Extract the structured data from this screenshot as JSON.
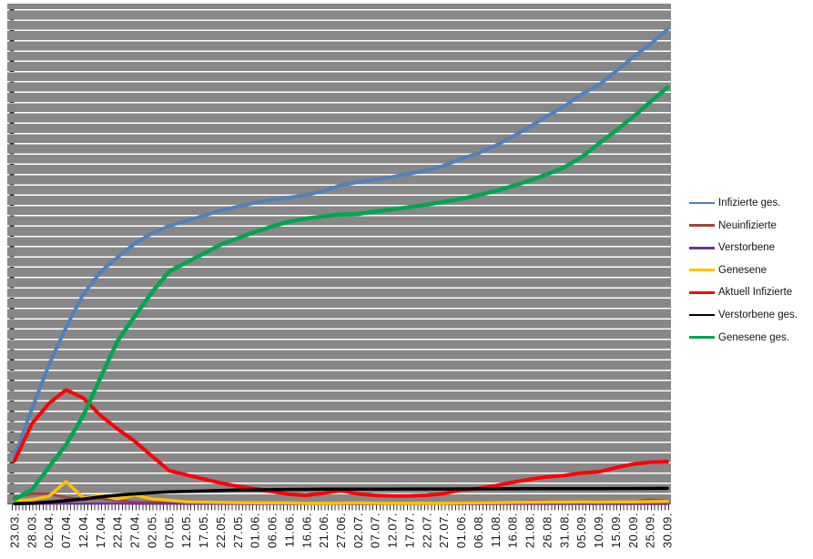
{
  "chart_data": {
    "type": "line",
    "title": "",
    "xlabel": "",
    "ylabel": "",
    "x_label_rotation": 90,
    "x_labels": [
      "23.03.",
      "28.03.",
      "02.04.",
      "07.04.",
      "12.04.",
      "17.04.",
      "22.04.",
      "27.04.",
      "02.05.",
      "07.05.",
      "12.05.",
      "17.05.",
      "22.05.",
      "27.05.",
      "01.06.",
      "06.06.",
      "11.06.",
      "16.06.",
      "21.06.",
      "27.06.",
      "02.07.",
      "07.07.",
      "12.07.",
      "17.07.",
      "22.07.",
      "27.07.",
      "01.06.",
      "06.08.",
      "11.08.",
      "16.08.",
      "21.08.",
      "26.08.",
      "31.08.",
      "05.09.",
      "10.09.",
      "15.09.",
      "20.09.",
      "25.09.",
      "30.09."
    ],
    "x_minor_ticks_per_label": 5,
    "ylim": [
      0,
      305000
    ],
    "y_axis_labels_visible": false,
    "y_gridlines": 48,
    "grid": "horizontal",
    "legend_position": "right",
    "series": [
      {
        "name": "Infizierte ges.",
        "color": "#4F81BD",
        "width": 4,
        "values": [
          29212,
          57695,
          84794,
          107663,
          127854,
          141397,
          150383,
          158758,
          164967,
          169430,
          172576,
          175752,
          179021,
          181288,
          183594,
          185416,
          186866,
          188252,
          190862,
          194259,
          196096,
          197783,
          199375,
          201450,
          203368,
          206242,
          210402,
          213772,
          218519,
          224014,
          230048,
          236429,
          242381,
          249715,
          255366,
          263663,
          272337,
          280223,
          289219
        ]
      },
      {
        "name": "Neuinfizierte",
        "color": "#9E453E",
        "width": 3,
        "values": [
          4183,
          6294,
          6174,
          4003,
          2537,
          3380,
          2237,
          1018,
          945,
          1284,
          933,
          583,
          638,
          353,
          333,
          407,
          555,
          345,
          537,
          687,
          466,
          390,
          248,
          583,
          454,
          340,
          955,
          1045,
          966,
          625,
          1427,
          1576,
          610,
          1453,
          1176,
          1407,
          1345,
          2507,
          1798
        ]
      },
      {
        "name": "Verstorbene",
        "color": "#7030A0",
        "width": 2.5,
        "values": [
          8,
          62,
          149,
          254,
          126,
          242,
          281,
          110,
          94,
          123,
          81,
          33,
          42,
          62,
          11,
          32,
          14,
          10,
          6,
          5,
          12,
          7,
          3,
          6,
          7,
          2,
          9,
          8,
          4,
          6,
          8,
          6,
          2,
          8,
          7,
          6,
          8,
          15,
          12
        ]
      },
      {
        "name": "Genesene",
        "color": "#FFC000",
        "width": 3.5,
        "values": [
          1800,
          2600,
          4600,
          13600,
          3600,
          5100,
          3100,
          5400,
          3000,
          2200,
          1200,
          1100,
          900,
          800,
          700,
          650,
          600,
          450,
          400,
          500,
          600,
          500,
          400,
          450,
          400,
          400,
          600,
          700,
          800,
          900,
          1000,
          1100,
          1100,
          1200,
          1100,
          1200,
          1300,
          1400,
          1500
        ]
      },
      {
        "name": "Aktuell Infizierte",
        "color": "#FF0000",
        "width": 4,
        "values": [
          26273,
          48781,
          61247,
          69566,
          64532,
          53931,
          45668,
          38132,
          29155,
          20338,
          17715,
          15214,
          12722,
          10790,
          9139,
          7561,
          5822,
          5257,
          6594,
          8173,
          6086,
          5235,
          4907,
          4963,
          5267,
          6320,
          8554,
          9404,
          11112,
          13188,
          14995,
          16549,
          17383,
          18893,
          19525,
          22095,
          24251,
          25380,
          25831
        ]
      },
      {
        "name": "Verstorbene ges.",
        "color": "#000000",
        "width": 3.5,
        "values": [
          130,
          433,
          1107,
          2016,
          3022,
          4352,
          5315,
          6126,
          6812,
          7392,
          7661,
          7938,
          8212,
          8498,
          8555,
          8755,
          8844,
          8895,
          8968,
          8986,
          9010,
          9048,
          9068,
          9087,
          9101,
          9122,
          9148,
          9168,
          9207,
          9226,
          9253,
          9280,
          9298,
          9322,
          9341,
          9368,
          9386,
          9443,
          9488
        ]
      },
      {
        "name": "Genesene ges.",
        "color": "#00A550",
        "width": 4.5,
        "values": [
          2809,
          8481,
          22440,
          36081,
          53913,
          77000,
          99400,
          114500,
          129000,
          141700,
          147200,
          152600,
          158087,
          162000,
          165900,
          169100,
          172200,
          174100,
          175300,
          176500,
          176800,
          178200,
          179600,
          181000,
          182500,
          184200,
          186000,
          188200,
          190800,
          193800,
          197200,
          201000,
          205200,
          211500,
          219500,
          227500,
          236000,
          245000,
          253900
        ]
      }
    ]
  },
  "style_colors": {
    "plot_background": "#878787",
    "gridline": "#FFFFFF",
    "axis_line": "#595959",
    "tick": "#333333",
    "x_label_text": "#141414"
  }
}
